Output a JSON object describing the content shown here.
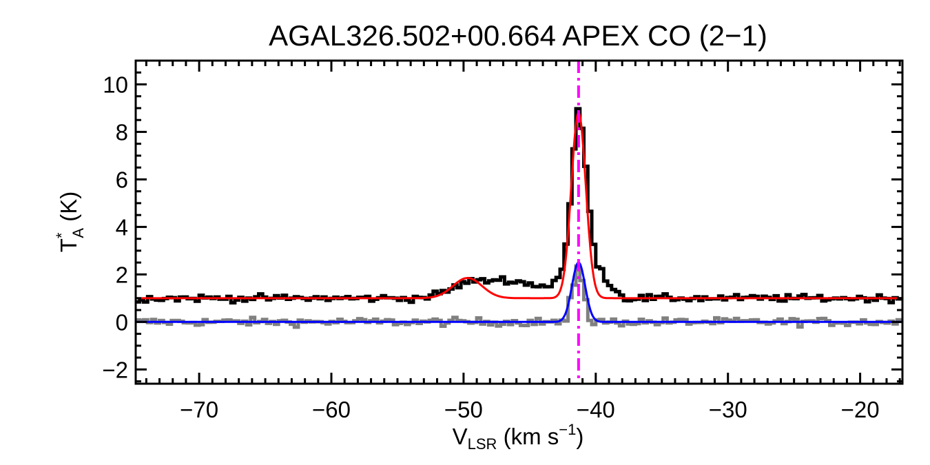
{
  "chart_data": {
    "type": "line",
    "title": "AGAL326.502+00.664  APEX CO (2−1)",
    "xlabel": {
      "main": "V",
      "sub": "LSR",
      "rest": " (km s",
      "sup": "−1",
      "close": ")"
    },
    "ylabel": {
      "main": "T",
      "sup": "*",
      "sub": "A",
      "rest": " (K)"
    },
    "xlim": [
      -74.8,
      -16.8
    ],
    "ylim": [
      -2.6,
      11.0
    ],
    "x_ticks": [
      -70,
      -60,
      -50,
      -40,
      -30,
      -20
    ],
    "x_tick_labels": [
      "−70",
      "−60",
      "−50",
      "−40",
      "−30",
      "−20"
    ],
    "y_ticks": [
      -2,
      0,
      2,
      4,
      6,
      8,
      10
    ],
    "y_tick_labels": [
      "−2",
      "0",
      "2",
      "4",
      "6",
      "8",
      "10"
    ],
    "grid": false,
    "vline": {
      "x": -41.3,
      "color": "#ff00ff",
      "style": "dash-dot"
    },
    "colors": {
      "observed": "#000000",
      "residual": "#808080",
      "fit": "#ff0000",
      "fit_component": "#0000ff"
    },
    "series": [
      {
        "key": "observed",
        "style": "step",
        "baseline": 1.0,
        "noise": 0.15,
        "x": [
          -53.5,
          -52,
          -50.5,
          -49.5,
          -48.5,
          -47.5,
          -46.5,
          -45.5,
          -44.5,
          -43.5,
          -42.5,
          -42.0,
          -41.6,
          -41.3,
          -41.0,
          -40.6,
          -40.0,
          -39.0,
          -38.0
        ],
        "y": [
          1.0,
          1.15,
          1.5,
          1.75,
          1.7,
          1.8,
          1.75,
          1.65,
          1.55,
          1.5,
          2.1,
          4.5,
          7.8,
          9.1,
          8.0,
          5.5,
          2.6,
          1.6,
          1.1
        ]
      },
      {
        "key": "residual",
        "style": "step",
        "baseline": 0.0,
        "noise": 0.17,
        "x": [
          -42.2,
          -41.6,
          -41.3,
          -41.0,
          -40.5
        ],
        "y": [
          0.3,
          1.6,
          2.55,
          1.7,
          0.4
        ]
      },
      {
        "key": "fit",
        "style": "gaussian",
        "baseline": 1.0,
        "components": [
          {
            "amp": 0.85,
            "center": -49.7,
            "sigma": 1.1
          },
          {
            "amp": 7.8,
            "center": -41.3,
            "sigma": 0.55
          }
        ]
      },
      {
        "key": "fit_component",
        "style": "gaussian",
        "baseline": 0.0,
        "components": [
          {
            "amp": 2.5,
            "center": -41.3,
            "sigma": 0.5
          }
        ]
      }
    ]
  }
}
